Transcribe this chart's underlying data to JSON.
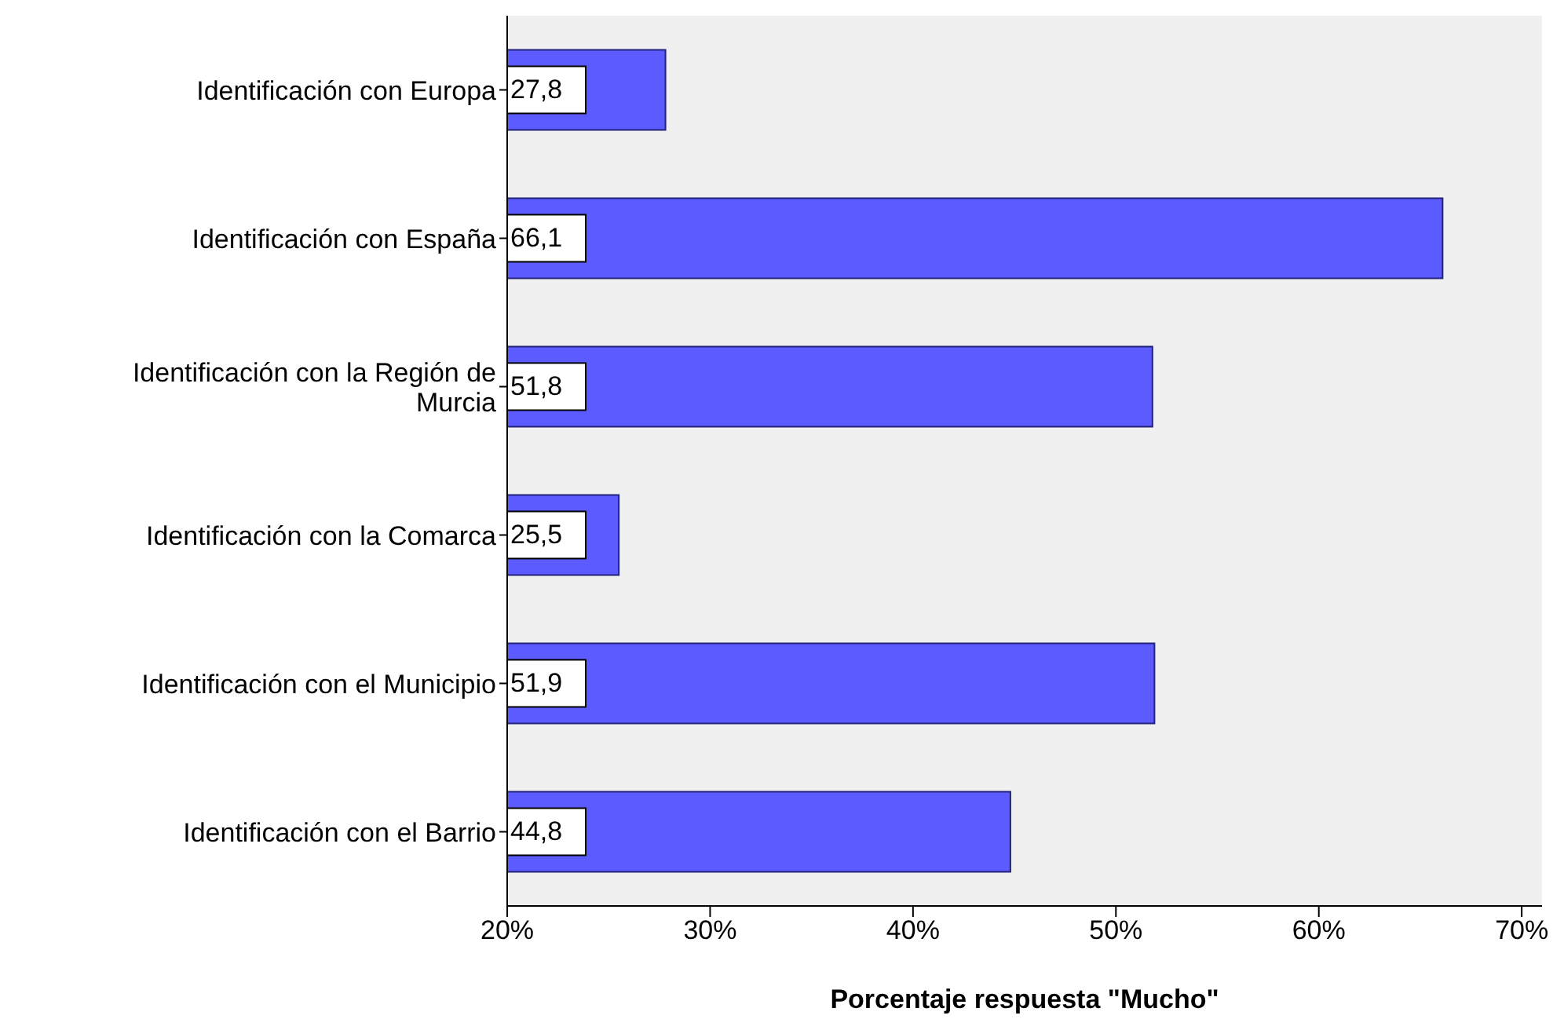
{
  "chart_data": {
    "type": "bar",
    "orientation": "horizontal",
    "xlabel": "Porcentaje respuesta \"Mucho\"",
    "categories": [
      "Identificación con Europa",
      "Identificación con España",
      "Identificación con la Región de Murcia",
      "Identificación con la Comarca",
      "Identificación con el Municipio",
      "Identificación con el Barrio"
    ],
    "values": [
      27.8,
      66.1,
      51.8,
      25.5,
      51.9,
      44.8
    ],
    "value_labels": [
      "27,8",
      "66,1",
      "51,8",
      "25,5",
      "51,9",
      "44,8"
    ],
    "color": "#5b5bff",
    "xlim": [
      20,
      71
    ],
    "xticks": [
      {
        "value": 20,
        "label": "20%"
      },
      {
        "value": 30,
        "label": "30%"
      },
      {
        "value": 40,
        "label": "40%"
      },
      {
        "value": 50,
        "label": "50%"
      },
      {
        "value": 60,
        "label": "60%"
      },
      {
        "value": 70,
        "label": "70%"
      }
    ],
    "grid": false,
    "legend": false
  }
}
